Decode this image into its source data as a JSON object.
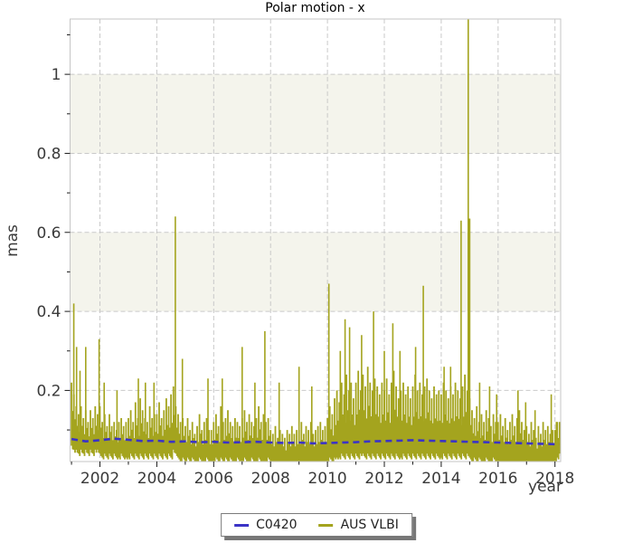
{
  "chart_data": {
    "type": "line",
    "title": "Polar motion - x",
    "xlabel": "year",
    "ylabel": "mas",
    "xlim": [
      2000.95,
      2018.2
    ],
    "ylim": [
      0.02,
      1.14
    ],
    "grid": {
      "on": true,
      "color": "#c9c9c9"
    },
    "bands": {
      "color": "#f4f4ec",
      "ranges": [
        [
          0.4,
          0.6
        ],
        [
          0.8,
          1.0
        ]
      ]
    },
    "x_ticks": {
      "major": [
        2002,
        2004,
        2006,
        2008,
        2010,
        2012,
        2014,
        2016,
        2018
      ],
      "labels": [
        "2002",
        "2004",
        "2006",
        "2008",
        "2010",
        "2012",
        "2014",
        "2016",
        "2018"
      ],
      "minor": [
        2001,
        2003,
        2005,
        2007,
        2009,
        2011,
        2013,
        2015,
        2017
      ]
    },
    "y_ticks": {
      "major": [
        0.2,
        0.4,
        0.6,
        0.8,
        1.0
      ],
      "labels": [
        "0.2",
        "0.4",
        "0.6",
        "0.8",
        "1"
      ],
      "minor": [
        0.1,
        0.3,
        0.5,
        0.7,
        0.9,
        1.1
      ]
    },
    "legend": {
      "position": "bottom-center"
    },
    "series": [
      {
        "name": "C0420",
        "color": "#3b33c6",
        "style": "dashed-line",
        "points": [
          [
            2001.0,
            0.077
          ],
          [
            2001.5,
            0.071
          ],
          [
            2002.0,
            0.074
          ],
          [
            2002.5,
            0.078
          ],
          [
            2003.0,
            0.075
          ],
          [
            2003.5,
            0.072
          ],
          [
            2004.0,
            0.073
          ],
          [
            2004.5,
            0.07
          ],
          [
            2005.0,
            0.071
          ],
          [
            2005.5,
            0.069
          ],
          [
            2006.0,
            0.07
          ],
          [
            2006.5,
            0.068
          ],
          [
            2007.0,
            0.069
          ],
          [
            2007.5,
            0.07
          ],
          [
            2008.0,
            0.068
          ],
          [
            2008.5,
            0.067
          ],
          [
            2009.0,
            0.068
          ],
          [
            2009.5,
            0.066
          ],
          [
            2010.0,
            0.067
          ],
          [
            2010.5,
            0.068
          ],
          [
            2011.0,
            0.069
          ],
          [
            2011.5,
            0.071
          ],
          [
            2012.0,
            0.072
          ],
          [
            2012.5,
            0.073
          ],
          [
            2013.0,
            0.074
          ],
          [
            2013.5,
            0.073
          ],
          [
            2014.0,
            0.072
          ],
          [
            2014.5,
            0.071
          ],
          [
            2015.0,
            0.07
          ],
          [
            2015.5,
            0.069
          ],
          [
            2016.0,
            0.068
          ],
          [
            2016.5,
            0.067
          ],
          [
            2017.0,
            0.066
          ],
          [
            2017.5,
            0.065
          ],
          [
            2018.0,
            0.064
          ],
          [
            2018.15,
            0.064
          ]
        ]
      },
      {
        "name": "AUS VLBI",
        "color": "#a4a41e",
        "style": "noise-envelope",
        "x_start": 2001.0,
        "x_step": 0.083333,
        "envelope": [
          [
            0.06,
            0.22
          ],
          [
            0.05,
            0.19
          ],
          [
            0.05,
            0.16
          ],
          [
            0.04,
            0.14
          ],
          [
            0.05,
            0.16
          ],
          [
            0.04,
            0.13
          ],
          [
            0.05,
            0.15
          ],
          [
            0.04,
            0.12
          ],
          [
            0.05,
            0.15
          ],
          [
            0.04,
            0.13
          ],
          [
            0.05,
            0.16
          ],
          [
            0.05,
            0.14
          ],
          [
            0.04,
            0.16
          ],
          [
            0.03,
            0.12
          ],
          [
            0.04,
            0.14
          ],
          [
            0.03,
            0.11
          ],
          [
            0.04,
            0.14
          ],
          [
            0.03,
            0.11
          ],
          [
            0.04,
            0.12
          ],
          [
            0.03,
            0.1
          ],
          [
            0.03,
            0.12
          ],
          [
            0.04,
            0.13
          ],
          [
            0.03,
            0.11
          ],
          [
            0.03,
            0.12
          ],
          [
            0.03,
            0.13
          ],
          [
            0.04,
            0.15
          ],
          [
            0.03,
            0.12
          ],
          [
            0.04,
            0.17
          ],
          [
            0.03,
            0.13
          ],
          [
            0.04,
            0.18
          ],
          [
            0.03,
            0.15
          ],
          [
            0.04,
            0.13
          ],
          [
            0.03,
            0.12
          ],
          [
            0.04,
            0.16
          ],
          [
            0.03,
            0.13
          ],
          [
            0.04,
            0.14
          ],
          [
            0.03,
            0.14
          ],
          [
            0.04,
            0.17
          ],
          [
            0.03,
            0.13
          ],
          [
            0.04,
            0.15
          ],
          [
            0.03,
            0.18
          ],
          [
            0.04,
            0.16
          ],
          [
            0.03,
            0.19
          ],
          [
            0.05,
            0.21
          ],
          [
            0.04,
            0.16
          ],
          [
            0.03,
            0.14
          ],
          [
            0.02,
            0.12
          ],
          [
            0.03,
            0.13
          ],
          [
            0.02,
            0.11
          ],
          [
            0.03,
            0.13
          ],
          [
            0.02,
            0.1
          ],
          [
            0.03,
            0.12
          ],
          [
            0.02,
            0.09
          ],
          [
            0.02,
            0.11
          ],
          [
            0.03,
            0.14
          ],
          [
            0.02,
            0.1
          ],
          [
            0.02,
            0.12
          ],
          [
            0.03,
            0.13
          ],
          [
            0.02,
            0.1
          ],
          [
            0.02,
            0.1
          ],
          [
            0.02,
            0.12
          ],
          [
            0.03,
            0.14
          ],
          [
            0.02,
            0.11
          ],
          [
            0.03,
            0.16
          ],
          [
            0.02,
            0.12
          ],
          [
            0.03,
            0.13
          ],
          [
            0.02,
            0.15
          ],
          [
            0.03,
            0.12
          ],
          [
            0.02,
            0.11
          ],
          [
            0.02,
            0.13
          ],
          [
            0.03,
            0.12
          ],
          [
            0.02,
            0.11
          ],
          [
            0.02,
            0.13
          ],
          [
            0.03,
            0.15
          ],
          [
            0.02,
            0.12
          ],
          [
            0.02,
            0.14
          ],
          [
            0.03,
            0.12
          ],
          [
            0.02,
            0.11
          ],
          [
            0.02,
            0.13
          ],
          [
            0.03,
            0.16
          ],
          [
            0.02,
            0.12
          ],
          [
            0.02,
            0.14
          ],
          [
            0.02,
            0.12
          ],
          [
            0.03,
            0.13
          ],
          [
            0.02,
            0.1
          ],
          [
            0.02,
            0.09
          ],
          [
            0.02,
            0.11
          ],
          [
            0.02,
            0.08
          ],
          [
            0.02,
            0.1
          ],
          [
            0.02,
            0.09
          ],
          [
            0.01,
            0.08
          ],
          [
            0.02,
            0.1
          ],
          [
            0.02,
            0.09
          ],
          [
            0.02,
            0.11
          ],
          [
            0.02,
            0.09
          ],
          [
            0.02,
            0.1
          ],
          [
            0.02,
            0.1
          ],
          [
            0.02,
            0.12
          ],
          [
            0.02,
            0.09
          ],
          [
            0.02,
            0.11
          ],
          [
            0.02,
            0.1
          ],
          [
            0.02,
            0.12
          ],
          [
            0.02,
            0.09
          ],
          [
            0.02,
            0.1
          ],
          [
            0.02,
            0.11
          ],
          [
            0.02,
            0.12
          ],
          [
            0.02,
            0.1
          ],
          [
            0.02,
            0.11
          ],
          [
            0.02,
            0.13
          ],
          [
            0.03,
            0.16
          ],
          [
            0.02,
            0.14
          ],
          [
            0.03,
            0.18
          ],
          [
            0.03,
            0.2
          ],
          [
            0.03,
            0.17
          ],
          [
            0.04,
            0.22
          ],
          [
            0.03,
            0.19
          ],
          [
            0.04,
            0.24
          ],
          [
            0.03,
            0.2
          ],
          [
            0.04,
            0.22
          ],
          [
            0.03,
            0.18
          ],
          [
            0.04,
            0.22
          ],
          [
            0.03,
            0.25
          ],
          [
            0.04,
            0.2
          ],
          [
            0.04,
            0.24
          ],
          [
            0.03,
            0.21
          ],
          [
            0.04,
            0.26
          ],
          [
            0.03,
            0.22
          ],
          [
            0.04,
            0.2
          ],
          [
            0.03,
            0.23
          ],
          [
            0.04,
            0.21
          ],
          [
            0.03,
            0.19
          ],
          [
            0.04,
            0.22
          ],
          [
            0.03,
            0.2
          ],
          [
            0.04,
            0.23
          ],
          [
            0.03,
            0.19
          ],
          [
            0.04,
            0.22
          ],
          [
            0.03,
            0.25
          ],
          [
            0.04,
            0.21
          ],
          [
            0.03,
            0.18
          ],
          [
            0.03,
            0.2
          ],
          [
            0.04,
            0.22
          ],
          [
            0.03,
            0.19
          ],
          [
            0.04,
            0.21
          ],
          [
            0.03,
            0.18
          ],
          [
            0.04,
            0.21
          ],
          [
            0.03,
            0.24
          ],
          [
            0.04,
            0.2
          ],
          [
            0.03,
            0.22
          ],
          [
            0.04,
            0.19
          ],
          [
            0.03,
            0.21
          ],
          [
            0.04,
            0.23
          ],
          [
            0.03,
            0.2
          ],
          [
            0.04,
            0.18
          ],
          [
            0.03,
            0.21
          ],
          [
            0.04,
            0.19
          ],
          [
            0.03,
            0.2
          ],
          [
            0.03,
            0.19
          ],
          [
            0.04,
            0.22
          ],
          [
            0.03,
            0.2
          ],
          [
            0.04,
            0.18
          ],
          [
            0.03,
            0.21
          ],
          [
            0.04,
            0.19
          ],
          [
            0.03,
            0.22
          ],
          [
            0.04,
            0.2
          ],
          [
            0.03,
            0.18
          ],
          [
            0.04,
            0.21
          ],
          [
            0.03,
            0.24
          ],
          [
            0.04,
            0.2
          ],
          [
            0.03,
            0.18
          ],
          [
            0.02,
            0.15
          ],
          [
            0.03,
            0.13
          ],
          [
            0.02,
            0.16
          ],
          [
            0.03,
            0.12
          ],
          [
            0.02,
            0.14
          ],
          [
            0.02,
            0.12
          ],
          [
            0.03,
            0.15
          ],
          [
            0.02,
            0.13
          ],
          [
            0.02,
            0.11
          ],
          [
            0.03,
            0.14
          ],
          [
            0.02,
            0.12
          ],
          [
            0.02,
            0.12
          ],
          [
            0.02,
            0.14
          ],
          [
            0.02,
            0.11
          ],
          [
            0.02,
            0.13
          ],
          [
            0.02,
            0.1
          ],
          [
            0.02,
            0.12
          ],
          [
            0.02,
            0.14
          ],
          [
            0.02,
            0.11
          ],
          [
            0.02,
            0.13
          ],
          [
            0.02,
            0.15
          ],
          [
            0.02,
            0.12
          ],
          [
            0.02,
            0.1
          ],
          [
            0.02,
            0.11
          ],
          [
            0.02,
            0.09
          ],
          [
            0.02,
            0.12
          ],
          [
            0.02,
            0.1
          ],
          [
            0.02,
            0.08
          ],
          [
            0.02,
            0.11
          ],
          [
            0.02,
            0.09
          ],
          [
            0.02,
            0.12
          ],
          [
            0.02,
            0.1
          ],
          [
            0.02,
            0.11
          ],
          [
            0.02,
            0.09
          ],
          [
            0.02,
            0.1
          ],
          [
            0.02,
            0.1
          ],
          [
            0.03,
            0.12
          ],
          [
            0.04,
            0.12
          ]
        ],
        "peaks": [
          [
            2001.08,
            0.42
          ],
          [
            2001.18,
            0.31
          ],
          [
            2001.3,
            0.25
          ],
          [
            2001.5,
            0.31
          ],
          [
            2001.97,
            0.33
          ],
          [
            2002.15,
            0.22
          ],
          [
            2002.6,
            0.2
          ],
          [
            2003.35,
            0.23
          ],
          [
            2003.6,
            0.22
          ],
          [
            2003.9,
            0.22
          ],
          [
            2004.65,
            0.64
          ],
          [
            2004.9,
            0.28
          ],
          [
            2005.8,
            0.23
          ],
          [
            2006.3,
            0.23
          ],
          [
            2007.0,
            0.31
          ],
          [
            2007.45,
            0.22
          ],
          [
            2007.8,
            0.35
          ],
          [
            2008.3,
            0.22
          ],
          [
            2009.0,
            0.26
          ],
          [
            2009.45,
            0.21
          ],
          [
            2010.05,
            0.47
          ],
          [
            2010.45,
            0.3
          ],
          [
            2010.62,
            0.38
          ],
          [
            2010.78,
            0.36
          ],
          [
            2011.2,
            0.34
          ],
          [
            2011.62,
            0.4
          ],
          [
            2012.0,
            0.3
          ],
          [
            2012.3,
            0.37
          ],
          [
            2012.55,
            0.3
          ],
          [
            2013.1,
            0.31
          ],
          [
            2013.37,
            0.465
          ],
          [
            2014.1,
            0.26
          ],
          [
            2014.33,
            0.26
          ],
          [
            2014.7,
            0.63
          ],
          [
            2014.95,
            1.2
          ],
          [
            2015.0,
            0.635
          ],
          [
            2015.35,
            0.22
          ],
          [
            2015.7,
            0.21
          ],
          [
            2015.95,
            0.19
          ],
          [
            2016.7,
            0.2
          ],
          [
            2016.97,
            0.17
          ],
          [
            2017.3,
            0.15
          ],
          [
            2017.87,
            0.19
          ],
          [
            2018.05,
            0.12
          ]
        ]
      }
    ]
  }
}
